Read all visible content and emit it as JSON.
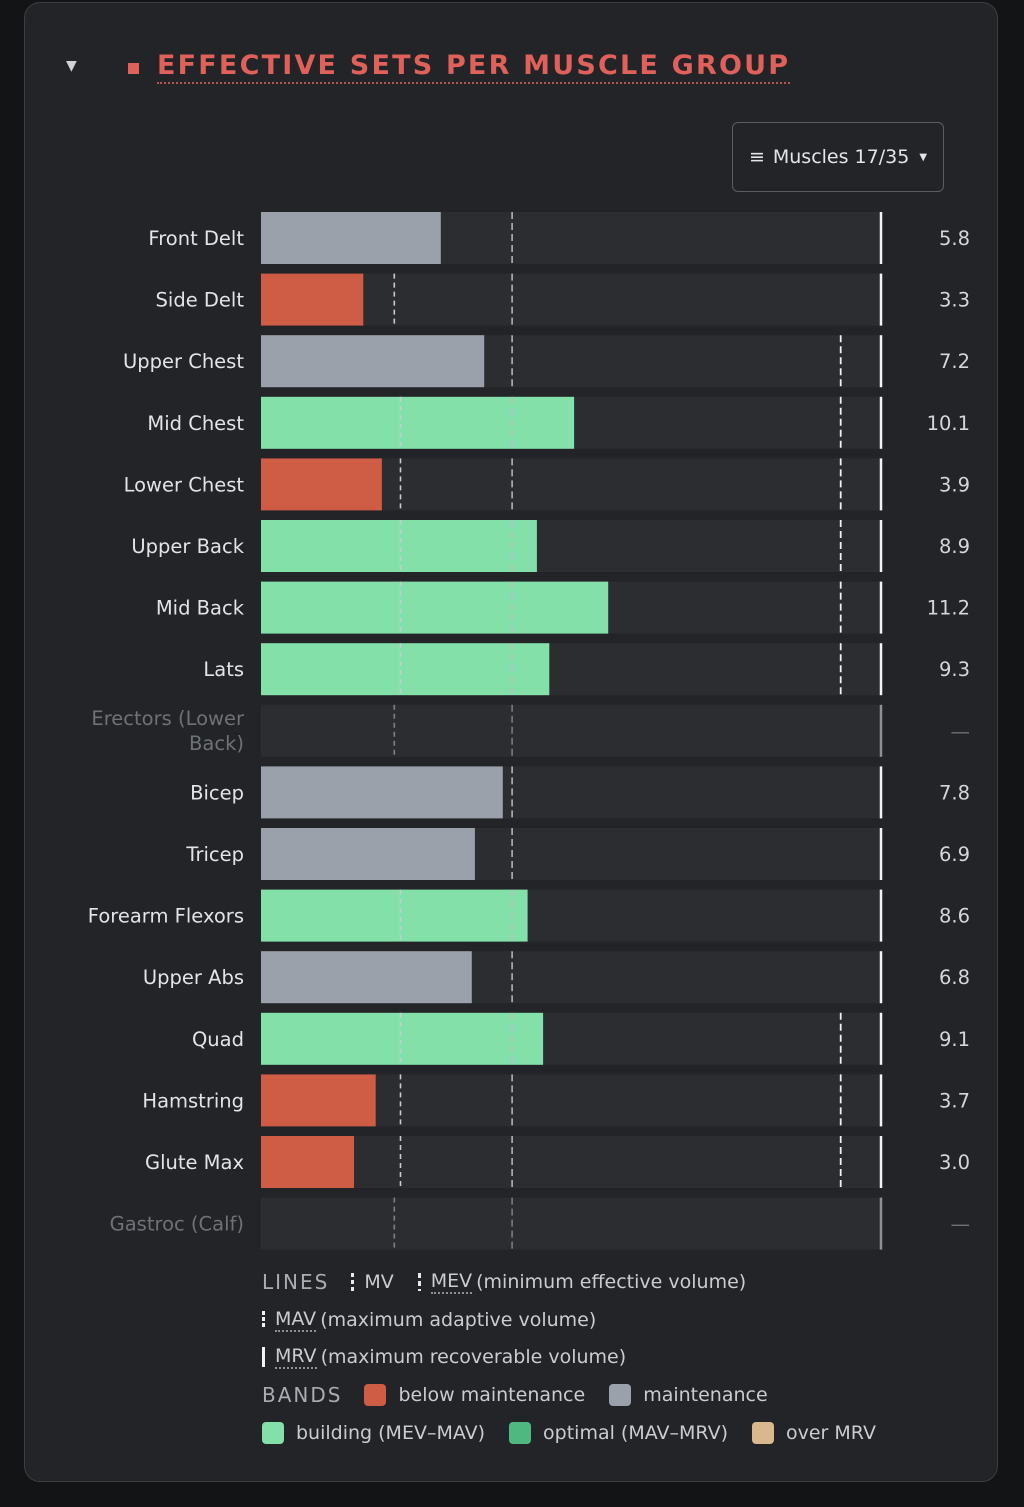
{
  "header": {
    "collapse_icon": "caret-down-icon",
    "title": "EFFECTIVE SETS PER MUSCLE GROUP",
    "filter_button": {
      "icon": "menu-lines-icon",
      "label": "Muscles 17/35"
    }
  },
  "colors": {
    "below_maintenance": "#cf5c45",
    "maintenance": "#9ba1ab",
    "building": "#83e0a9",
    "optimal": "#4fb880",
    "over_mrv": "#d9b88d",
    "track": "#2b2d31",
    "title": "#e0605a"
  },
  "chart_data": {
    "type": "bar",
    "orientation": "horizontal",
    "title": "EFFECTIVE SETS PER MUSCLE GROUP",
    "xlim": [
      0,
      20
    ],
    "grid": false,
    "categories": [
      "Front Delt",
      "Side Delt",
      "Upper Chest",
      "Mid Chest",
      "Lower Chest",
      "Upper Back",
      "Mid Back",
      "Lats",
      "Erectors (Lower Back)",
      "Bicep",
      "Tricep",
      "Forearm Flexors",
      "Upper Abs",
      "Quad",
      "Hamstring",
      "Glute Max",
      "Gastroc (Calf)"
    ],
    "values": [
      5.8,
      3.3,
      7.2,
      10.1,
      3.9,
      8.9,
      11.2,
      9.3,
      null,
      7.8,
      6.9,
      8.6,
      6.8,
      9.1,
      3.7,
      3.0,
      null
    ],
    "value_labels": [
      "5.8",
      "3.3",
      "7.2",
      "10.1",
      "3.9",
      "8.9",
      "11.2",
      "9.3",
      "—",
      "7.8",
      "6.9",
      "8.6",
      "6.8",
      "9.1",
      "3.7",
      "3.0",
      "—"
    ],
    "bands": [
      "maintenance",
      "below_maintenance",
      "maintenance",
      "building",
      "below_maintenance",
      "building",
      "building",
      "building",
      "none",
      "maintenance",
      "maintenance",
      "building",
      "maintenance",
      "building",
      "below_maintenance",
      "below_maintenance",
      "none"
    ],
    "disabled": [
      false,
      false,
      false,
      false,
      false,
      false,
      false,
      false,
      true,
      false,
      false,
      false,
      false,
      false,
      false,
      false,
      true
    ],
    "mv": [
      null,
      4.3,
      null,
      4.5,
      4.5,
      4.5,
      4.5,
      4.5,
      4.3,
      null,
      null,
      4.5,
      null,
      4.5,
      4.5,
      4.5,
      4.3
    ],
    "mev": [
      8.1,
      8.1,
      8.1,
      8.1,
      8.1,
      8.1,
      8.1,
      8.1,
      8.1,
      8.1,
      8.1,
      8.1,
      8.1,
      8.1,
      8.1,
      8.1,
      8.1
    ],
    "mav": [
      null,
      null,
      18.7,
      18.7,
      18.7,
      18.7,
      18.7,
      18.7,
      null,
      null,
      null,
      null,
      null,
      18.7,
      18.7,
      18.7,
      null
    ],
    "mrv": [
      20,
      20,
      20,
      20,
      20,
      20,
      20,
      20,
      20,
      20,
      20,
      20,
      20,
      20,
      20,
      20,
      20
    ]
  },
  "legend": {
    "lines_caption": "LINES",
    "mv": "MV",
    "mev_abbr": "MEV",
    "mev_desc": "(minimum effective volume)",
    "mav_abbr": "MAV",
    "mav_desc": "(maximum adaptive volume)",
    "mrv_abbr": "MRV",
    "mrv_desc": "(maximum recoverable volume)",
    "bands_caption": "BANDS",
    "below_maintenance": "below maintenance",
    "maintenance": "maintenance",
    "building": "building (MEV–MAV)",
    "optimal": "optimal (MAV–MRV)",
    "over_mrv": "over MRV"
  }
}
